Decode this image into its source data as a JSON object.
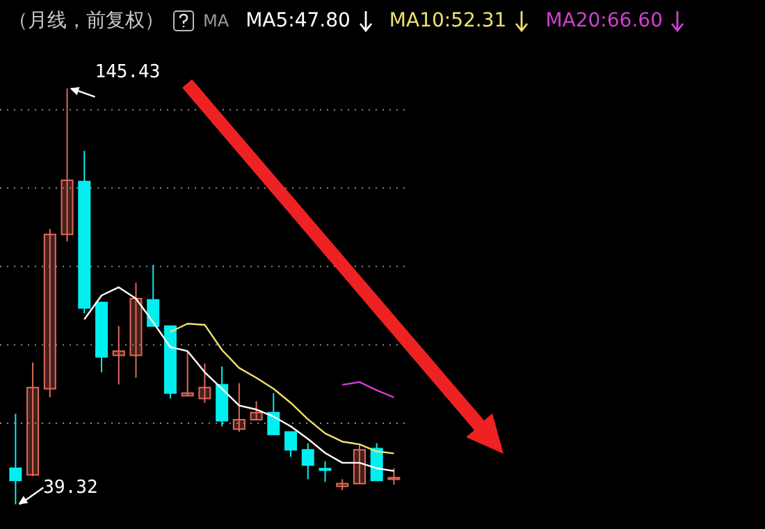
{
  "chart_data": {
    "type": "candlestick",
    "title": "（月线，前复权）",
    "categories": [
      null,
      null,
      null,
      null,
      null,
      null,
      null,
      null,
      null,
      null,
      null,
      null,
      null,
      null,
      null,
      null,
      null,
      null,
      null,
      null,
      null,
      null,
      null
    ],
    "ohlc": [
      [
        48.5,
        62.4,
        39.32,
        45.4
      ],
      [
        46.8,
        75.5,
        46.5,
        69.1
      ],
      [
        68.8,
        109.6,
        66.6,
        108.2
      ],
      [
        108.2,
        145.43,
        106.4,
        122.0
      ],
      [
        121.7,
        129.5,
        88.0,
        89.4
      ],
      [
        90.8,
        91.0,
        73.0,
        76.9
      ],
      [
        77.3,
        84.8,
        69.9,
        78.4
      ],
      [
        77.3,
        95.8,
        71.6,
        91.8
      ],
      [
        91.5,
        100.4,
        84.8,
        84.8
      ],
      [
        84.8,
        84.8,
        66.3,
        67.7
      ],
      [
        67.0,
        78.4,
        67.0,
        67.7
      ],
      [
        66.3,
        75.2,
        65.2,
        69.1
      ],
      [
        69.8,
        74.5,
        59.2,
        60.6
      ],
      [
        58.5,
        70.2,
        57.8,
        60.9
      ],
      [
        60.9,
        65.6,
        60.9,
        62.7
      ],
      [
        62.7,
        67.7,
        57.1,
        57.1
      ],
      [
        57.8,
        57.8,
        51.4,
        53.2
      ],
      [
        53.2,
        54.9,
        45.7,
        49.3
      ],
      [
        48.4,
        50.3,
        45.0,
        48.0
      ],
      [
        43.9,
        45.7,
        42.9,
        44.6
      ],
      [
        44.6,
        54.6,
        44.6,
        53.2
      ],
      [
        53.5,
        54.9,
        45.4,
        45.4
      ],
      [
        45.7,
        48.5,
        44.3,
        46.1
      ]
    ],
    "series": [
      {
        "name": "MA5:47.80",
        "type": "line",
        "color": "#ffffff",
        "values": [
          null,
          null,
          null,
          null,
          86.5,
          92.6,
          94.7,
          91.8,
          85.8,
          79.4,
          78.4,
          73.0,
          68.8,
          64.5,
          63.5,
          61.7,
          59.2,
          56.0,
          52.4,
          49.9,
          49.9,
          48.5,
          47.8
        ]
      },
      {
        "name": "MA10:52.31",
        "type": "line",
        "color": "#f0e070",
        "values": [
          null,
          null,
          null,
          null,
          null,
          null,
          null,
          null,
          null,
          83.3,
          85.4,
          85.1,
          78.7,
          74.1,
          71.6,
          68.8,
          65.2,
          61.0,
          57.4,
          55.3,
          54.6,
          52.8,
          52.3
        ]
      },
      {
        "name": "MA20:66.60",
        "type": "line",
        "color": "#d040d0",
        "values": [
          null,
          null,
          null,
          null,
          null,
          null,
          null,
          null,
          null,
          null,
          null,
          null,
          null,
          null,
          null,
          null,
          null,
          null,
          null,
          69.8,
          70.5,
          68.4,
          66.6
        ]
      }
    ],
    "annotations": [
      "MA",
      "145.43",
      "39.32"
    ],
    "ylim": [
      33,
      168
    ],
    "yticks": [
      {
        "value": 60,
        "label": null
      },
      {
        "value": 80,
        "label": null
      },
      {
        "value": 100,
        "label": null
      },
      {
        "value": 120,
        "label": null
      },
      {
        "value": 140,
        "label": null
      }
    ],
    "grid": "y",
    "tick_labels": false,
    "legend": "top",
    "marker": "none",
    "line_style": "solid"
  }
}
